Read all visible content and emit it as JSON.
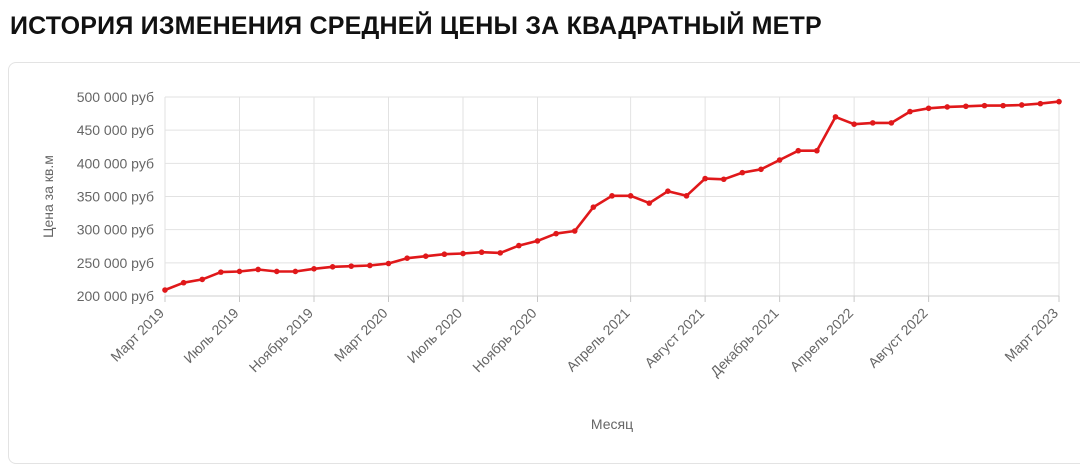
{
  "page": {
    "title": "ИСТОРИЯ ИЗМЕНЕНИЯ СРЕДНЕЙ ЦЕНЫ ЗА КВАДРАТНЫЙ МЕТР"
  },
  "colors": {
    "line": "#e0181a",
    "grid": "#e2e2e2",
    "text": "#666666"
  },
  "chart_data": {
    "type": "line",
    "title": "",
    "xlabel": "Месяц",
    "ylabel": "Цена за кв.м",
    "ylim": [
      200000,
      500000
    ],
    "yticks": [
      200000,
      250000,
      300000,
      350000,
      400000,
      450000,
      500000
    ],
    "ytick_labels": [
      "200 000 руб",
      "250 000 руб",
      "300 000 руб",
      "350 000 руб",
      "400 000 руб",
      "450 000 руб",
      "500 000 руб"
    ],
    "x_labels": [
      {
        "index": 0,
        "label": "Март 2019"
      },
      {
        "index": 4,
        "label": "Июль 2019"
      },
      {
        "index": 8,
        "label": "Ноябрь 2019"
      },
      {
        "index": 12,
        "label": "Март 2020"
      },
      {
        "index": 16,
        "label": "Июль 2020"
      },
      {
        "index": 20,
        "label": "Ноябрь 2020"
      },
      {
        "index": 25,
        "label": "Апрель 2021"
      },
      {
        "index": 29,
        "label": "Август 2021"
      },
      {
        "index": 33,
        "label": "Декабрь 2021"
      },
      {
        "index": 37,
        "label": "Апрель 2022"
      },
      {
        "index": 41,
        "label": "Август 2022"
      },
      {
        "index": 48,
        "label": "Март 2023"
      }
    ],
    "x": [
      "2019-03",
      "2019-04",
      "2019-05",
      "2019-06",
      "2019-07",
      "2019-08",
      "2019-09",
      "2019-10",
      "2019-11",
      "2019-12",
      "2020-01",
      "2020-02",
      "2020-03",
      "2020-04",
      "2020-05",
      "2020-06",
      "2020-07",
      "2020-08",
      "2020-09",
      "2020-10",
      "2020-11",
      "2020-12",
      "2021-01",
      "2021-02",
      "2021-03",
      "2021-04",
      "2021-05",
      "2021-06",
      "2021-07",
      "2021-08",
      "2021-09",
      "2021-10",
      "2021-11",
      "2021-12",
      "2022-01",
      "2022-02",
      "2022-03",
      "2022-04",
      "2022-05",
      "2022-06",
      "2022-07",
      "2022-08",
      "2022-09",
      "2022-10",
      "2022-11",
      "2022-12",
      "2023-01",
      "2023-02",
      "2023-03"
    ],
    "series": [
      {
        "name": "",
        "values": [
          209000,
          220000,
          225000,
          236000,
          237000,
          240000,
          237000,
          237000,
          241000,
          244000,
          245000,
          246000,
          249000,
          257000,
          260000,
          263000,
          264000,
          266000,
          265000,
          276000,
          283000,
          294000,
          298000,
          334000,
          351000,
          351000,
          340000,
          358000,
          351000,
          377000,
          376000,
          386000,
          391000,
          405000,
          419000,
          419000,
          470000,
          459000,
          461000,
          461000,
          478000,
          483000,
          485000,
          486000,
          487000,
          487000,
          488000,
          490000,
          493000
        ]
      }
    ],
    "grid": true,
    "legend": "none"
  }
}
